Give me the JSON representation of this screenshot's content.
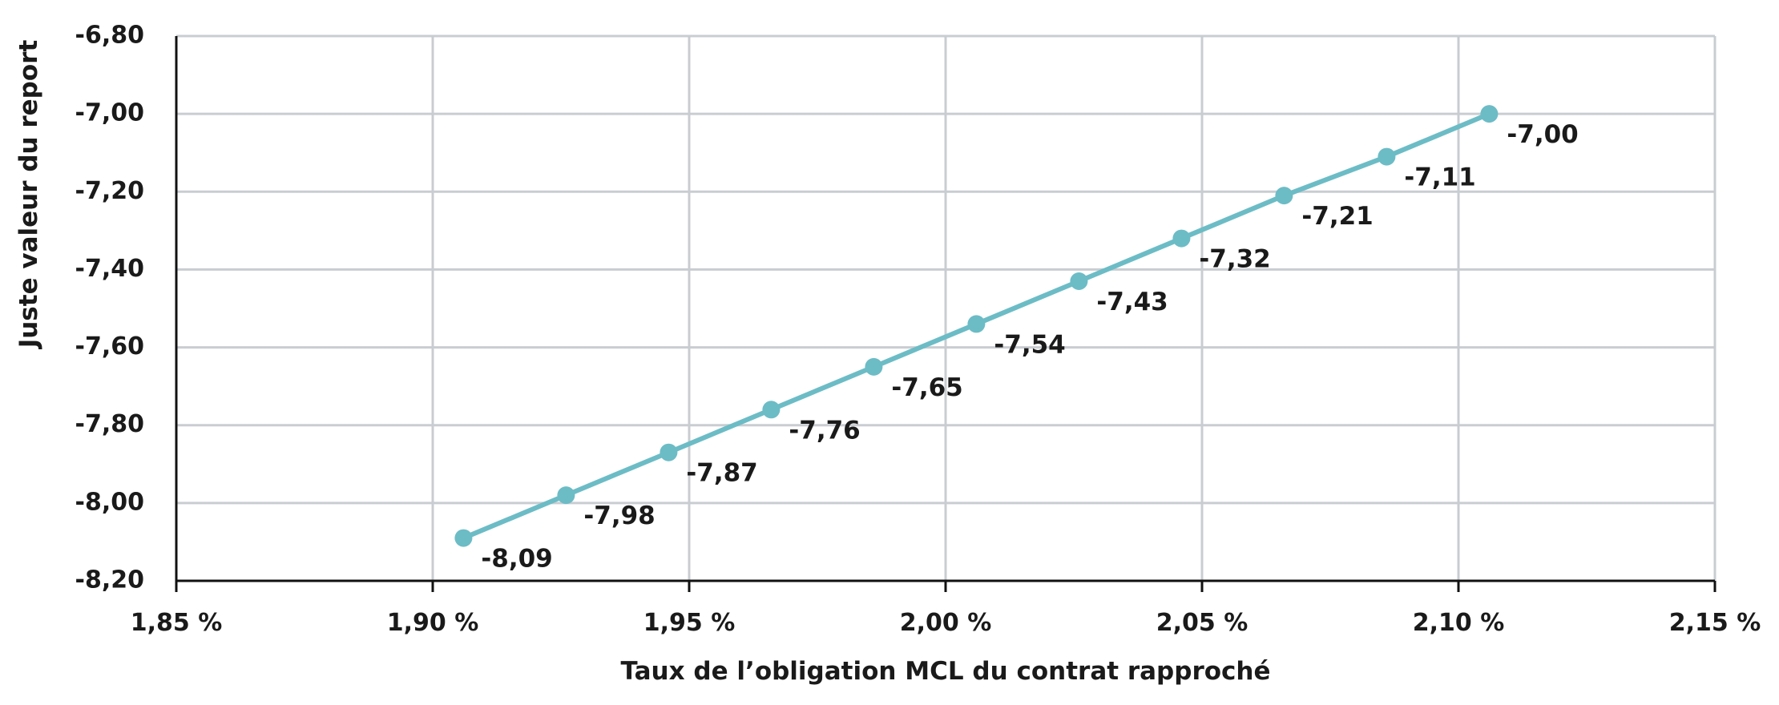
{
  "chart_data": {
    "type": "line",
    "title": "",
    "xlabel": "Taux de l’obligation MCL du contrat rapproché",
    "ylabel": "Juste valeur du report",
    "xlim": [
      1.85,
      2.15
    ],
    "ylim": [
      -8.2,
      -6.8
    ],
    "x_ticks": [
      1.85,
      1.9,
      1.95,
      2.0,
      2.05,
      2.1,
      2.15
    ],
    "x_tick_labels": [
      "1,85 %",
      "1,90 %",
      "1,95 %",
      "2,00 %",
      "2,05 %",
      "2,10 %",
      "2,15 %"
    ],
    "y_ticks": [
      -6.8,
      -7.0,
      -7.2,
      -7.4,
      -7.6,
      -7.8,
      -8.0,
      -8.2
    ],
    "y_tick_labels": [
      "-6,80",
      "-7,00",
      "-7,20",
      "-7,40",
      "-7,60",
      "-7,80",
      "-8,00",
      "-8,20"
    ],
    "grid": true,
    "series": [
      {
        "color": "#6cbcc6",
        "x": [
          1.906,
          1.926,
          1.946,
          1.966,
          1.986,
          2.006,
          2.026,
          2.046,
          2.066,
          2.086,
          2.106
        ],
        "values": [
          -8.09,
          -7.98,
          -7.87,
          -7.76,
          -7.65,
          -7.54,
          -7.43,
          -7.32,
          -7.21,
          -7.11,
          -7.0
        ],
        "labels": [
          "-8,09",
          "-7,98",
          "-7,87",
          "-7,76",
          "-7,65",
          "-7,54",
          "-7,43",
          "-7,32",
          "-7,21",
          "-7,11",
          "-7,00"
        ]
      }
    ]
  }
}
